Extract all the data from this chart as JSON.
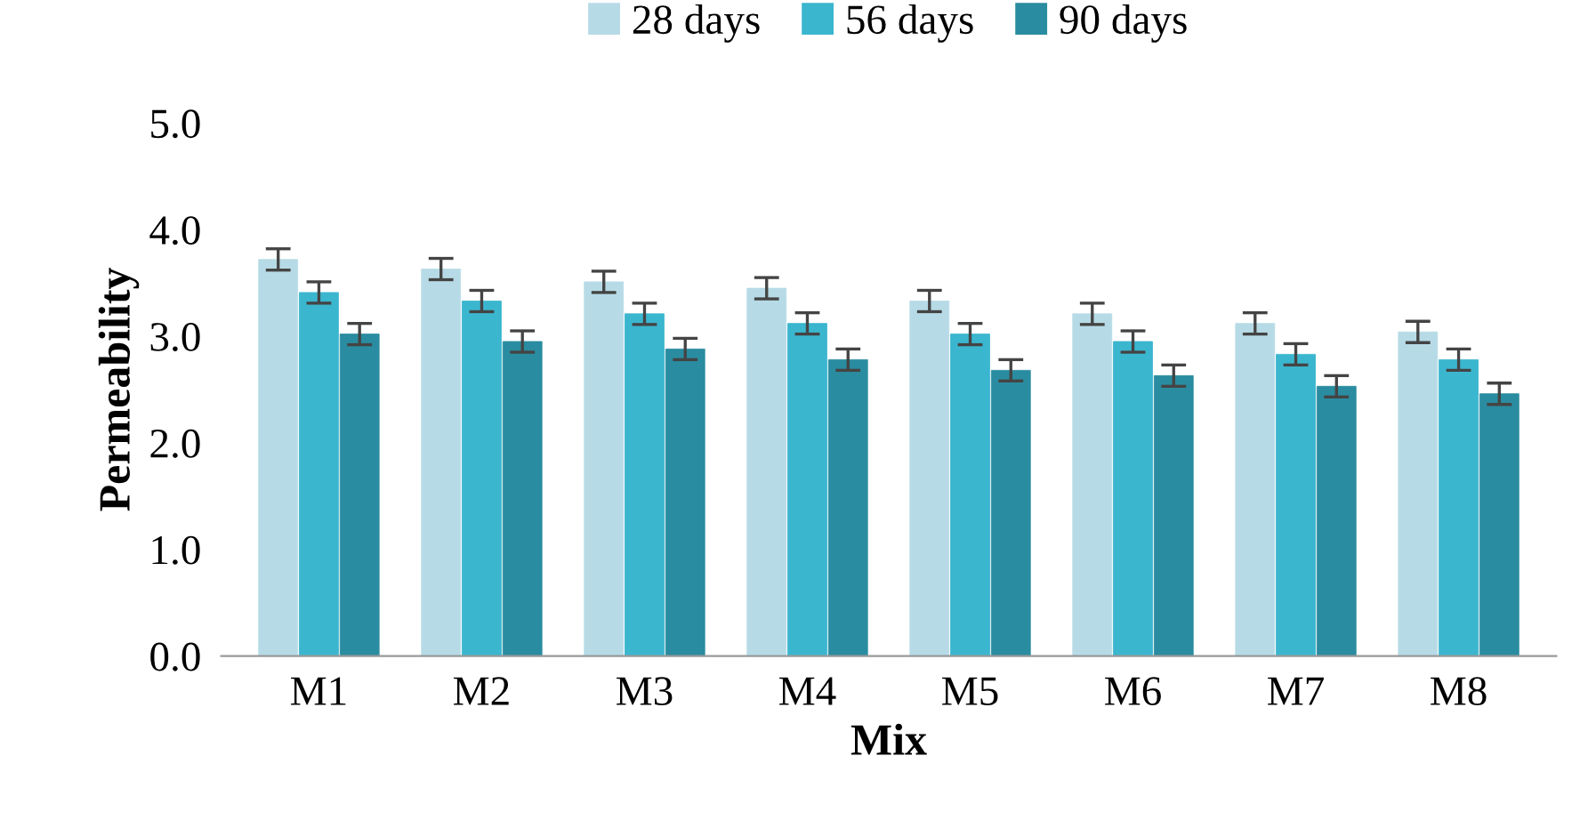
{
  "chart_data": {
    "type": "bar",
    "xlabel": "Mix",
    "ylabel": "Permeability",
    "categories": [
      "M1",
      "M2",
      "M3",
      "M4",
      "M5",
      "M6",
      "M7",
      "M8"
    ],
    "series": [
      {
        "name": "28 days",
        "color": "#b7dbe6",
        "values": [
          3.72,
          3.63,
          3.51,
          3.45,
          3.33,
          3.21,
          3.12,
          3.04
        ],
        "errors": [
          0.1,
          0.1,
          0.1,
          0.1,
          0.1,
          0.1,
          0.1,
          0.1
        ]
      },
      {
        "name": "56 days",
        "color": "#3bb6cf",
        "values": [
          3.41,
          3.33,
          3.21,
          3.12,
          3.02,
          2.95,
          2.83,
          2.78
        ],
        "errors": [
          0.1,
          0.1,
          0.1,
          0.1,
          0.1,
          0.1,
          0.1,
          0.1
        ]
      },
      {
        "name": "90 days",
        "color": "#2a8ca0",
        "values": [
          3.02,
          2.95,
          2.88,
          2.78,
          2.68,
          2.63,
          2.53,
          2.46
        ],
        "errors": [
          0.1,
          0.1,
          0.1,
          0.1,
          0.1,
          0.1,
          0.1,
          0.1
        ]
      }
    ],
    "ylim": [
      0,
      5
    ],
    "yticks": [
      {
        "value": 0,
        "label": "0.0"
      },
      {
        "value": 1,
        "label": "1.0"
      },
      {
        "value": 2,
        "label": "2.0"
      },
      {
        "value": 3,
        "label": "3.0"
      },
      {
        "value": 4,
        "label": "4.0"
      },
      {
        "value": 5,
        "label": "5.0"
      }
    ],
    "grid": false,
    "legend": "top"
  }
}
